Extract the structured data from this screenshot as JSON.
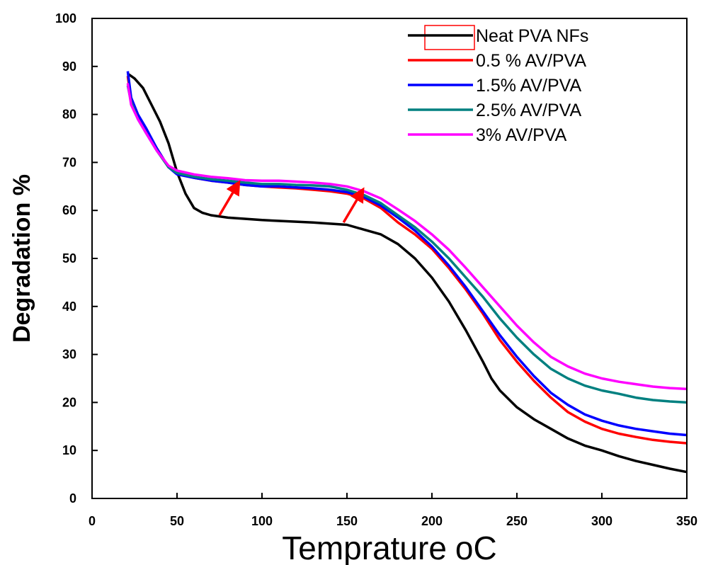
{
  "chart_data": {
    "type": "line",
    "xlabel": "Temprature",
    "xlabel_unit": "oC",
    "ylabel": "Degradation %",
    "xlim": [
      0,
      350
    ],
    "ylim": [
      0,
      100
    ],
    "x_ticks": [
      0,
      50,
      100,
      150,
      200,
      250,
      300,
      350
    ],
    "y_ticks": [
      0,
      10,
      20,
      30,
      40,
      50,
      60,
      70,
      80,
      90,
      100
    ],
    "grid": false,
    "legend_position": "top-right",
    "series": [
      {
        "name": "Neat PVA NFs",
        "color": "#000000",
        "points": [
          [
            21,
            88.5
          ],
          [
            25,
            87.5
          ],
          [
            30,
            85.5
          ],
          [
            35,
            82
          ],
          [
            40,
            78.5
          ],
          [
            45,
            74
          ],
          [
            50,
            68
          ],
          [
            55,
            63.5
          ],
          [
            60,
            60.5
          ],
          [
            65,
            59.5
          ],
          [
            70,
            59
          ],
          [
            80,
            58.5
          ],
          [
            100,
            58
          ],
          [
            130,
            57.5
          ],
          [
            150,
            57
          ],
          [
            160,
            56
          ],
          [
            170,
            55
          ],
          [
            180,
            53
          ],
          [
            190,
            50
          ],
          [
            200,
            46
          ],
          [
            210,
            41
          ],
          [
            220,
            35
          ],
          [
            230,
            28.5
          ],
          [
            235,
            25
          ],
          [
            240,
            22.5
          ],
          [
            250,
            19
          ],
          [
            260,
            16.5
          ],
          [
            270,
            14.5
          ],
          [
            280,
            12.5
          ],
          [
            290,
            11
          ],
          [
            300,
            10
          ],
          [
            310,
            8.8
          ],
          [
            320,
            7.8
          ],
          [
            330,
            7
          ],
          [
            340,
            6.2
          ],
          [
            350,
            5.5
          ]
        ]
      },
      {
        "name": "0.5 % AV/PVA",
        "color": "#ff0000",
        "points": [
          [
            21,
            88
          ],
          [
            23,
            83
          ],
          [
            27,
            79.5
          ],
          [
            32,
            76.5
          ],
          [
            38,
            73
          ],
          [
            45,
            69
          ],
          [
            50,
            67.8
          ],
          [
            60,
            66.8
          ],
          [
            70,
            66.2
          ],
          [
            80,
            65.8
          ],
          [
            90,
            65.3
          ],
          [
            100,
            65
          ],
          [
            110,
            64.8
          ],
          [
            120,
            64.6
          ],
          [
            130,
            64.3
          ],
          [
            140,
            64
          ],
          [
            150,
            63.5
          ],
          [
            160,
            62.5
          ],
          [
            170,
            60.5
          ],
          [
            180,
            57.5
          ],
          [
            190,
            55
          ],
          [
            200,
            52
          ],
          [
            210,
            48
          ],
          [
            220,
            43.5
          ],
          [
            230,
            38.5
          ],
          [
            240,
            33
          ],
          [
            250,
            28.5
          ],
          [
            260,
            24.5
          ],
          [
            270,
            21
          ],
          [
            280,
            18
          ],
          [
            290,
            16
          ],
          [
            300,
            14.5
          ],
          [
            310,
            13.5
          ],
          [
            320,
            12.8
          ],
          [
            330,
            12.2
          ],
          [
            340,
            11.8
          ],
          [
            350,
            11.5
          ]
        ]
      },
      {
        "name": "1.5% AV/PVA",
        "color": "#0000ff",
        "points": [
          [
            21,
            89
          ],
          [
            23,
            83.5
          ],
          [
            27,
            80
          ],
          [
            32,
            77
          ],
          [
            38,
            73
          ],
          [
            45,
            69
          ],
          [
            50,
            67.5
          ],
          [
            60,
            66.8
          ],
          [
            70,
            66.2
          ],
          [
            80,
            65.8
          ],
          [
            90,
            65.3
          ],
          [
            100,
            65
          ],
          [
            110,
            65
          ],
          [
            120,
            64.8
          ],
          [
            130,
            64.6
          ],
          [
            140,
            64.3
          ],
          [
            150,
            63.8
          ],
          [
            160,
            62.8
          ],
          [
            170,
            61
          ],
          [
            180,
            58.5
          ],
          [
            190,
            55.8
          ],
          [
            200,
            52.5
          ],
          [
            210,
            48.5
          ],
          [
            220,
            44
          ],
          [
            230,
            39
          ],
          [
            240,
            34
          ],
          [
            250,
            29.5
          ],
          [
            260,
            25.5
          ],
          [
            270,
            22
          ],
          [
            280,
            19.5
          ],
          [
            290,
            17.5
          ],
          [
            300,
            16.2
          ],
          [
            310,
            15.2
          ],
          [
            320,
            14.5
          ],
          [
            330,
            14
          ],
          [
            340,
            13.5
          ],
          [
            350,
            13.2
          ]
        ]
      },
      {
        "name": "2.5%  AV/PVA",
        "color": "#008080",
        "points": [
          [
            21,
            86
          ],
          [
            23,
            82.5
          ],
          [
            27,
            79
          ],
          [
            32,
            76
          ],
          [
            38,
            72.5
          ],
          [
            45,
            69
          ],
          [
            50,
            67.8
          ],
          [
            60,
            67
          ],
          [
            70,
            66.5
          ],
          [
            80,
            66.2
          ],
          [
            90,
            65.8
          ],
          [
            100,
            65.5
          ],
          [
            110,
            65.5
          ],
          [
            120,
            65.3
          ],
          [
            130,
            65.2
          ],
          [
            140,
            65
          ],
          [
            150,
            64.3
          ],
          [
            160,
            63.2
          ],
          [
            170,
            61.5
          ],
          [
            180,
            59
          ],
          [
            190,
            56.5
          ],
          [
            200,
            53.5
          ],
          [
            210,
            50
          ],
          [
            220,
            46
          ],
          [
            230,
            42
          ],
          [
            240,
            37.5
          ],
          [
            250,
            33.5
          ],
          [
            260,
            30
          ],
          [
            270,
            27
          ],
          [
            280,
            25
          ],
          [
            290,
            23.5
          ],
          [
            300,
            22.5
          ],
          [
            310,
            21.8
          ],
          [
            320,
            21
          ],
          [
            330,
            20.5
          ],
          [
            340,
            20.2
          ],
          [
            350,
            20
          ]
        ]
      },
      {
        "name": "3%  AV/PVA",
        "color": "#ff00ff",
        "points": [
          [
            21,
            86.5
          ],
          [
            23,
            82
          ],
          [
            27,
            79
          ],
          [
            32,
            76
          ],
          [
            38,
            72.5
          ],
          [
            45,
            69.3
          ],
          [
            50,
            68.3
          ],
          [
            60,
            67.5
          ],
          [
            70,
            67
          ],
          [
            80,
            66.7
          ],
          [
            90,
            66.3
          ],
          [
            100,
            66.2
          ],
          [
            110,
            66.2
          ],
          [
            120,
            66
          ],
          [
            130,
            65.8
          ],
          [
            140,
            65.5
          ],
          [
            150,
            65
          ],
          [
            160,
            64
          ],
          [
            170,
            62.5
          ],
          [
            180,
            60.2
          ],
          [
            190,
            57.8
          ],
          [
            200,
            55
          ],
          [
            210,
            51.8
          ],
          [
            220,
            48
          ],
          [
            230,
            44
          ],
          [
            240,
            40
          ],
          [
            250,
            36
          ],
          [
            260,
            32.5
          ],
          [
            270,
            29.5
          ],
          [
            280,
            27.5
          ],
          [
            290,
            26
          ],
          [
            300,
            25
          ],
          [
            310,
            24.3
          ],
          [
            320,
            23.8
          ],
          [
            330,
            23.3
          ],
          [
            340,
            23
          ],
          [
            350,
            22.8
          ]
        ]
      }
    ],
    "annotations": [
      {
        "type": "arrow",
        "color": "#ff0000",
        "from": [
          75,
          59
        ],
        "to": [
          85,
          65
        ]
      },
      {
        "type": "arrow",
        "color": "#ff0000",
        "from": [
          148,
          57.5
        ],
        "to": [
          158,
          63.5
        ]
      }
    ]
  }
}
